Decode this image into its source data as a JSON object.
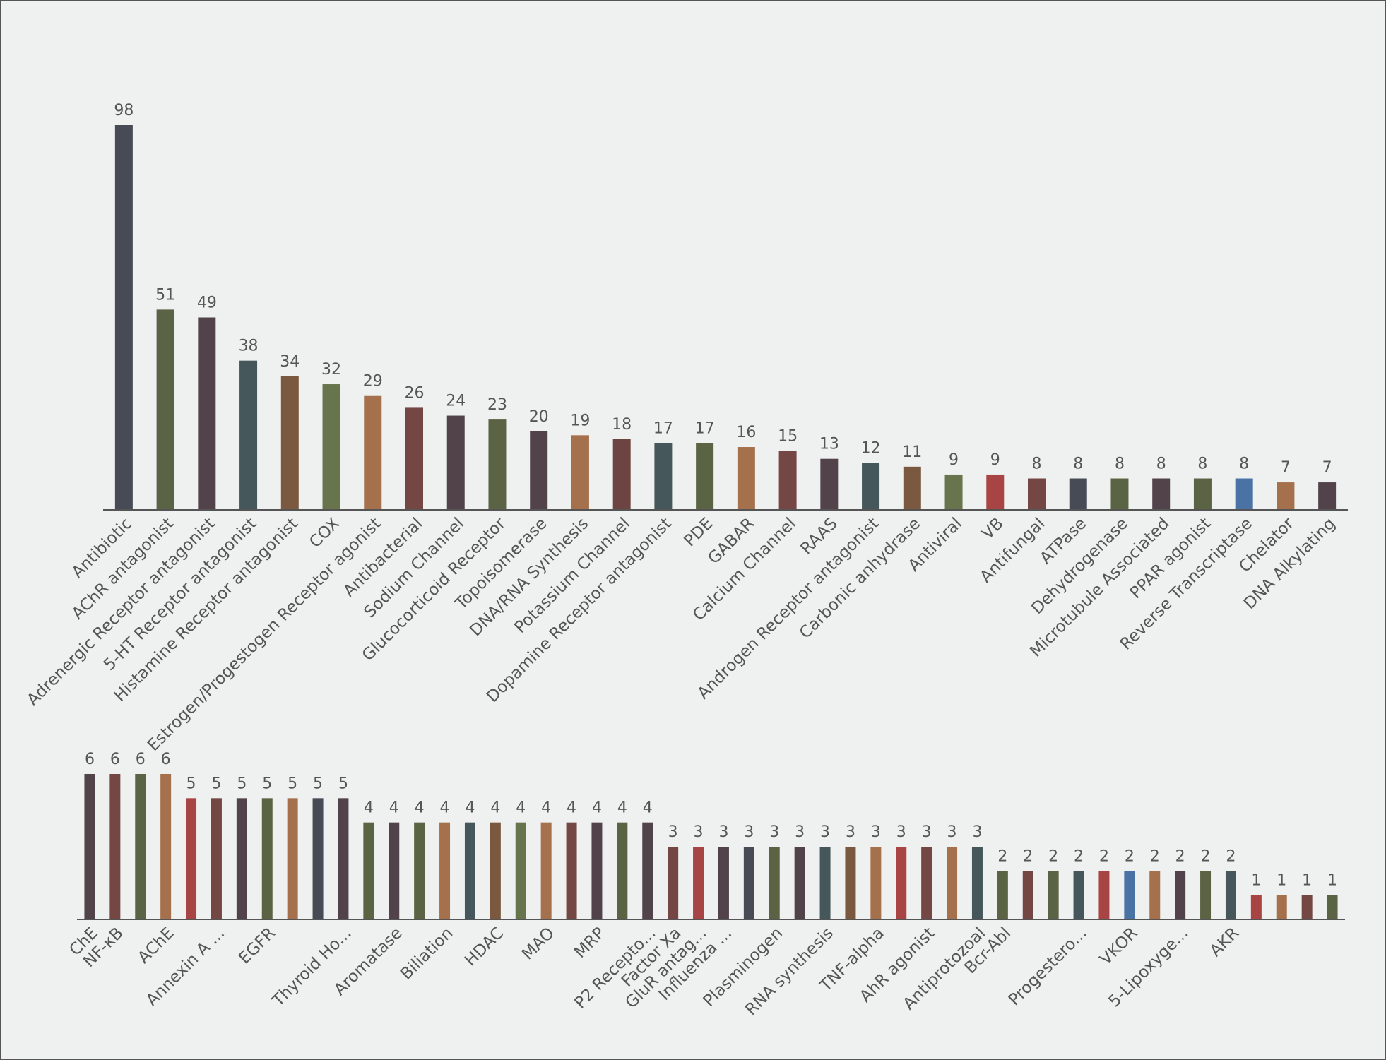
{
  "chart_data": [
    {
      "type": "bar",
      "categories": [
        "Antibiotic",
        "AChR antagonist",
        "Adrenergic Receptor antagonist",
        "5-HT Receptor antagonist",
        "Histamine Receptor antagonist",
        "COX",
        "Estrogen/Progestogen Receptor agonist",
        "Antibacterial",
        "Sodium Channel",
        "Glucocorticoid Receptor",
        "Topoisomerase",
        "DNA/RNA Synthesis",
        "Potassium Channel",
        "Dopamine Receptor antagonist",
        "PDE",
        "GABAR",
        "Calcium Channel",
        "RAAS",
        "Androgen Receptor antagonist",
        "Carbonic anhydrase",
        "Antiviral",
        "VB",
        "Antifungal",
        "ATPase",
        "Dehydrogenase",
        "Microtubule Associated",
        "PPAR agonist",
        "Reverse Transcriptase",
        "Chelator",
        "DNA Alkylating"
      ],
      "values": [
        98,
        51,
        49,
        38,
        34,
        32,
        29,
        26,
        24,
        23,
        20,
        19,
        18,
        17,
        17,
        16,
        15,
        13,
        12,
        11,
        9,
        9,
        8,
        8,
        8,
        8,
        8,
        8,
        7,
        7
      ],
      "colors": [
        "#474b55",
        "#5a6444",
        "#52434b",
        "#45575a",
        "#7a5940",
        "#67744c",
        "#a5714c",
        "#744744",
        "#52434b",
        "#5a6444",
        "#52434b",
        "#a5714c",
        "#6d4441",
        "#45575a",
        "#5a6444",
        "#a5714c",
        "#744744",
        "#52434b",
        "#45575a",
        "#7a5940",
        "#67744c",
        "#a84444",
        "#744744",
        "#474b55",
        "#5a6444",
        "#52434b",
        "#5a6444",
        "#4a72a5",
        "#a5714c",
        "#52434b"
      ],
      "ylim": [
        0,
        98
      ]
    },
    {
      "type": "bar",
      "categories": [
        "ChE",
        "NF-κB",
        null,
        "AChE",
        null,
        "Annexin A ...",
        null,
        "EGFR",
        null,
        null,
        "Thyroid Ho...",
        null,
        "Aromatase",
        null,
        "Biliation",
        null,
        "HDAC",
        null,
        "MAO",
        null,
        "MRP",
        null,
        "P2 Recepto...",
        "Factor Xa",
        "GluR antag...",
        "Influenza ...",
        null,
        "Plasminogen",
        null,
        "RNA synthesis",
        null,
        "TNF-alpha",
        null,
        "AhR agonist",
        null,
        "Antiprotozoal",
        "Bcr-Abl",
        null,
        null,
        "Progestero...",
        null,
        "VKOR",
        null,
        "5-Lipoxyge...",
        null,
        "AKR",
        null,
        null,
        null,
        null
      ],
      "values": [
        6,
        6,
        6,
        6,
        5,
        5,
        5,
        5,
        5,
        5,
        5,
        4,
        4,
        4,
        4,
        4,
        4,
        4,
        4,
        4,
        4,
        4,
        4,
        3,
        3,
        3,
        3,
        3,
        3,
        3,
        3,
        3,
        3,
        3,
        3,
        3,
        2,
        2,
        2,
        2,
        2,
        2,
        2,
        2,
        2,
        2,
        1,
        1,
        1,
        1
      ],
      "colors": [
        "#52434b",
        "#744744",
        "#5a6444",
        "#a5714c",
        "#a84444",
        "#744744",
        "#52434b",
        "#5a6444",
        "#a5714c",
        "#474b55",
        "#52434b",
        "#5a6444",
        "#52434b",
        "#5a6444",
        "#a5714c",
        "#45575a",
        "#7a5940",
        "#67744c",
        "#a5714c",
        "#744744",
        "#52434b",
        "#5a6444",
        "#52434b",
        "#744744",
        "#a84444",
        "#52434b",
        "#474b55",
        "#5a6444",
        "#52434b",
        "#45575a",
        "#7a5940",
        "#a5714c",
        "#a84444",
        "#744744",
        "#a5714c",
        "#45575a",
        "#5a6444",
        "#744744",
        "#5a6444",
        "#45575a",
        "#a84444",
        "#4a72a5",
        "#a5714c",
        "#52434b",
        "#5a6444",
        "#45575a",
        "#a84444",
        "#a5714c",
        "#744744",
        "#5a6444"
      ],
      "ylim": [
        0,
        6
      ]
    }
  ]
}
